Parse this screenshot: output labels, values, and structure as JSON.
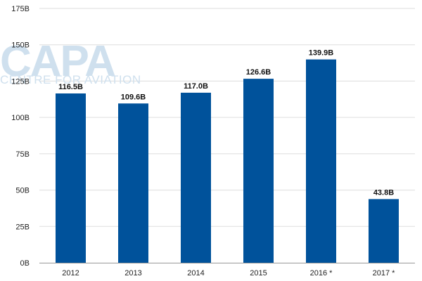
{
  "watermark": {
    "logo_text": "CAPA",
    "tagline": "CENTRE FOR AVIATION"
  },
  "colors": {
    "bar": "#00529b",
    "grid": "#dddddd",
    "axis": "#999999"
  },
  "chart_data": {
    "type": "bar",
    "categories": [
      "2012",
      "2013",
      "2014",
      "2015",
      "2016 *",
      "2017 *"
    ],
    "values": [
      116.5,
      109.6,
      117.0,
      126.6,
      139.9,
      43.8
    ],
    "data_labels": [
      "116.5B",
      "109.6B",
      "117.0B",
      "126.6B",
      "139.9B",
      "43.8B"
    ],
    "yticks": [
      0,
      25,
      50,
      75,
      100,
      125,
      150,
      175
    ],
    "ytick_labels": [
      "0B",
      "25B",
      "50B",
      "75B",
      "100B",
      "125B",
      "150B",
      "175B"
    ],
    "ylim": [
      0,
      175
    ],
    "grid": true,
    "legend": "none"
  }
}
